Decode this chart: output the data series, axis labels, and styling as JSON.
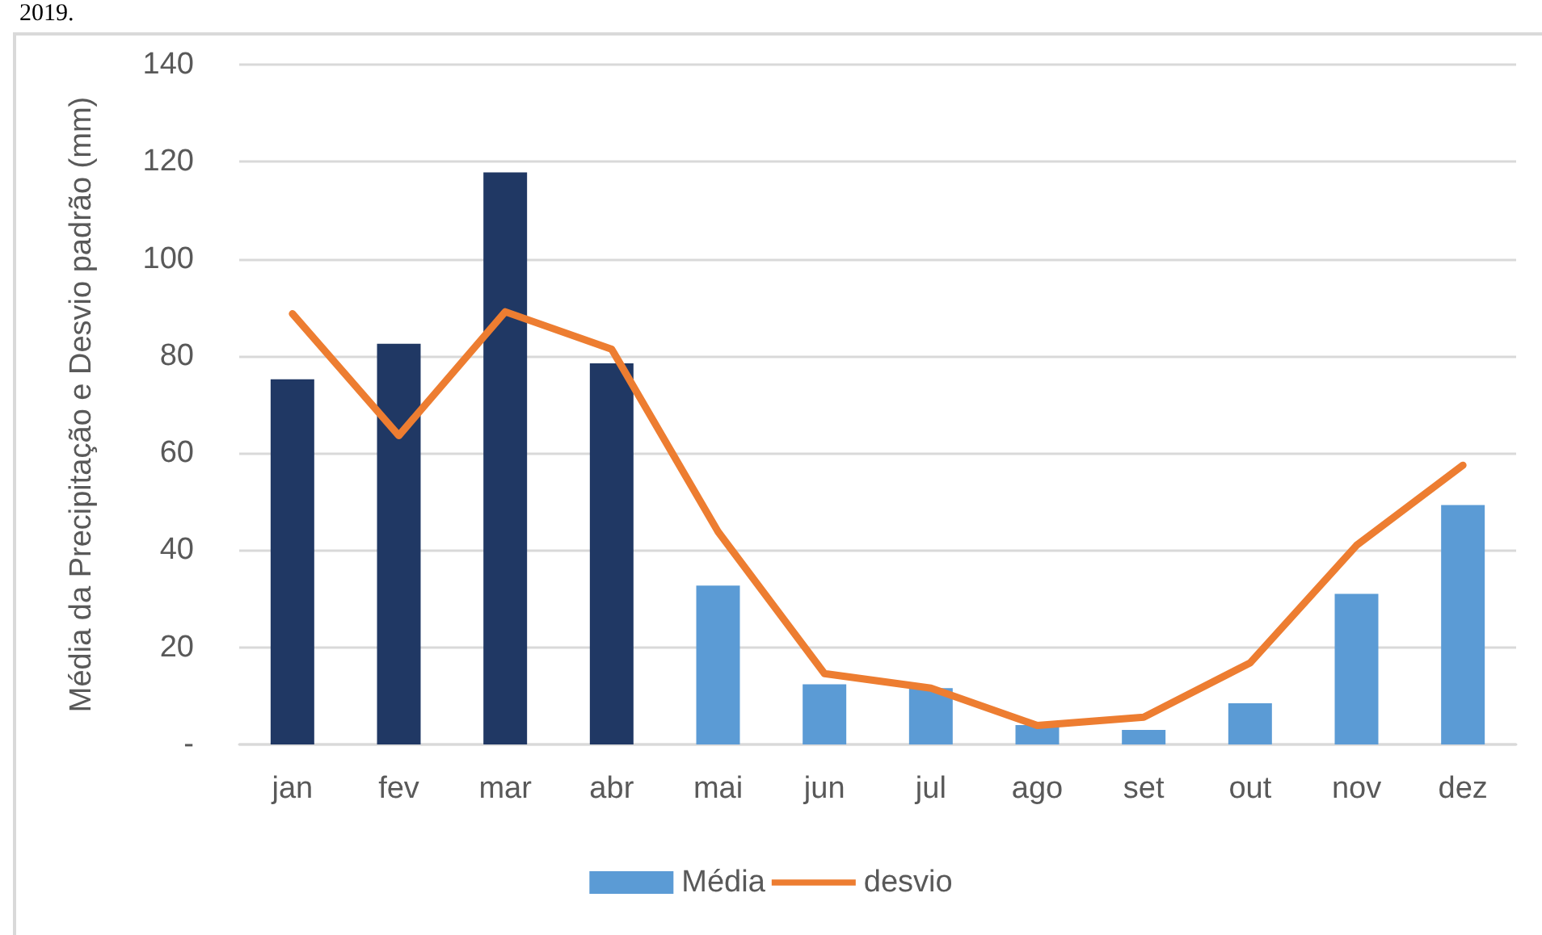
{
  "chart_data": {
    "type": "bar",
    "ylabel": "Média da Precipitação e Desvio padrão (mm)",
    "annotations": [
      "2019."
    ],
    "categories": [
      "jan",
      "fev",
      "mar",
      "abr",
      "mai",
      "jun",
      "jul",
      "ago",
      "set",
      "out",
      "nov",
      "dez"
    ],
    "series": [
      {
        "name": "Média",
        "color": "#5b9bd5",
        "colors": [
          "#203864",
          "#203864",
          "#203864",
          "#203864",
          "#5b9bd5",
          "#5b9bd5",
          "#5b9bd5",
          "#5b9bd5",
          "#5b9bd5",
          "#5b9bd5",
          "#5b9bd5",
          "#5b9bd5"
        ],
        "values": [
          75.2,
          82.5,
          117.8,
          78.5,
          32.7,
          12.4,
          11.6,
          4,
          3,
          8.5,
          31,
          49.3
        ]
      },
      {
        "name": "desvio",
        "type": "line",
        "color": "#ed7d31",
        "values": [
          88.7,
          63.6,
          89.1,
          81.4,
          43.8,
          14.6,
          11.6,
          3.9,
          5.6,
          16.8,
          41,
          57.5
        ]
      }
    ],
    "ylim": [
      0,
      140
    ],
    "yticks": [
      {
        "value": 0,
        "label": "-"
      },
      20,
      40,
      60,
      80,
      100,
      120,
      140
    ],
    "grid": "y",
    "legend": "bottom",
    "marker": "none",
    "line_style": "solid"
  }
}
